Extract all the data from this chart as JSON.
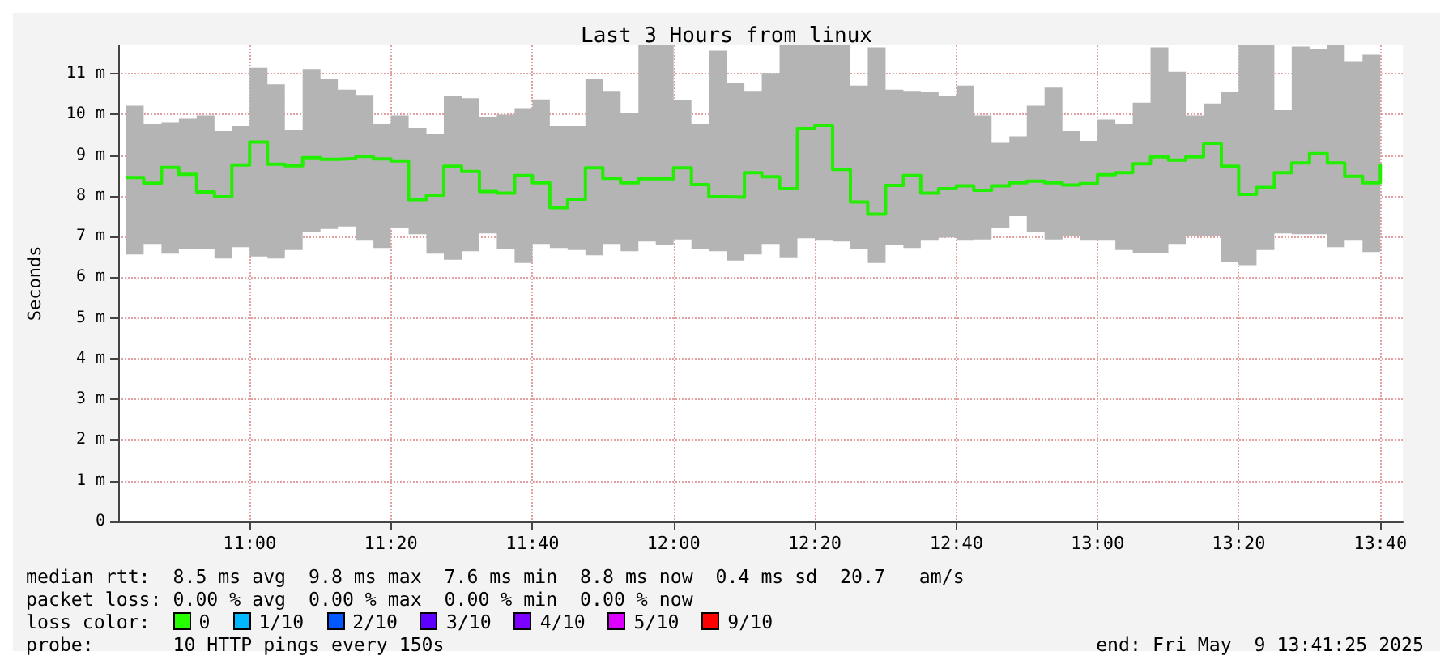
{
  "chart_data": {
    "type": "step",
    "title": "Last 3 Hours from linux",
    "ylabel": "Seconds",
    "x": [
      10.708,
      10.75,
      10.792,
      10.833,
      10.875,
      10.917,
      10.958,
      11.0,
      11.042,
      11.083,
      11.125,
      11.167,
      11.208,
      11.25,
      11.292,
      11.333,
      11.375,
      11.417,
      11.458,
      11.5,
      11.542,
      11.583,
      11.625,
      11.667,
      11.708,
      11.75,
      11.792,
      11.833,
      11.875,
      11.917,
      11.958,
      12.0,
      12.042,
      12.083,
      12.125,
      12.167,
      12.208,
      12.25,
      12.292,
      12.333,
      12.375,
      12.417,
      12.458,
      12.5,
      12.542,
      12.583,
      12.625,
      12.667,
      12.708,
      12.75,
      12.792,
      12.833,
      12.875,
      12.917,
      12.958,
      13.0,
      13.042,
      13.083,
      13.125,
      13.167,
      13.208,
      13.25,
      13.292,
      13.333,
      13.375,
      13.417,
      13.458,
      13.5,
      13.542,
      13.583,
      13.625,
      13.667
    ],
    "series": [
      {
        "color": "#22ee00",
        "values": [
          8.45,
          8.31,
          8.7,
          8.53,
          8.1,
          7.98,
          8.76,
          9.32,
          8.78,
          8.74,
          8.94,
          8.9,
          8.92,
          8.97,
          8.91,
          8.86,
          7.91,
          8.02,
          8.73,
          8.6,
          8.11,
          8.07,
          8.5,
          8.32,
          7.71,
          7.92,
          8.69,
          8.43,
          8.32,
          8.42,
          8.42,
          8.69,
          8.28,
          7.98,
          7.97,
          8.57,
          8.47,
          8.18,
          9.65,
          9.73,
          8.65,
          7.85,
          7.55,
          8.26,
          8.5,
          8.07,
          8.18,
          8.25,
          8.14,
          8.25,
          8.32,
          8.36,
          8.32,
          8.27,
          8.3,
          8.52,
          8.57,
          8.79,
          8.96,
          8.88,
          8.96,
          9.29,
          8.73,
          8.04,
          8.21,
          8.57,
          8.81,
          9.04,
          8.81,
          8.48,
          8.32,
          8.78
        ],
        "lower": [
          6.56,
          6.82,
          6.58,
          6.7,
          6.7,
          6.46,
          6.74,
          6.51,
          6.46,
          6.67,
          7.12,
          7.19,
          7.25,
          6.9,
          6.72,
          7.22,
          7.06,
          6.58,
          6.43,
          6.64,
          7.08,
          6.7,
          6.35,
          6.82,
          6.72,
          6.67,
          6.54,
          6.82,
          6.64,
          6.88,
          6.8,
          6.93,
          6.7,
          6.64,
          6.41,
          6.56,
          6.82,
          6.49,
          6.96,
          6.9,
          6.88,
          6.7,
          6.35,
          6.8,
          6.72,
          6.9,
          6.98,
          6.9,
          6.93,
          7.22,
          7.5,
          7.11,
          6.93,
          7.01,
          6.9,
          6.9,
          6.67,
          6.59,
          6.59,
          6.82,
          7.01,
          7.01,
          6.38,
          6.3,
          6.67,
          7.08,
          7.06,
          7.06,
          6.74,
          6.9,
          6.62,
          6.77
        ],
        "upper": [
          10.22,
          9.77,
          9.8,
          9.9,
          9.98,
          9.59,
          9.72,
          11.15,
          10.74,
          9.62,
          11.12,
          10.87,
          10.61,
          10.48,
          9.77,
          9.98,
          9.67,
          9.51,
          10.45,
          10.4,
          9.95,
          10.0,
          10.16,
          10.37,
          9.72,
          9.72,
          10.87,
          10.58,
          10.03,
          11.7,
          11.7,
          10.35,
          9.77,
          11.57,
          10.77,
          10.58,
          11.02,
          11.7,
          11.7,
          11.7,
          11.7,
          10.71,
          11.65,
          10.61,
          10.58,
          10.56,
          10.45,
          10.71,
          9.98,
          9.32,
          9.46,
          10.22,
          10.66,
          9.59,
          9.35,
          9.88,
          9.77,
          10.29,
          11.65,
          11.05,
          9.98,
          10.27,
          10.56,
          11.7,
          11.7,
          10.11,
          11.67,
          11.6,
          11.7,
          11.31,
          11.47,
          11.6
        ]
      }
    ],
    "xlim": [
      10.69,
      13.72
    ],
    "xticks": [
      {
        "value": 11.0,
        "label": "11:00"
      },
      {
        "value": 11.333,
        "label": "11:20"
      },
      {
        "value": 11.667,
        "label": "11:40"
      },
      {
        "value": 12.0,
        "label": "12:00"
      },
      {
        "value": 12.333,
        "label": "12:20"
      },
      {
        "value": 12.667,
        "label": "12:40"
      },
      {
        "value": 13.0,
        "label": "13:00"
      },
      {
        "value": 13.333,
        "label": "13:20"
      },
      {
        "value": 13.667,
        "label": "13:40"
      }
    ],
    "ylim": [
      0,
      11.7
    ],
    "yticks": [
      0,
      {
        "value": 1,
        "label": "1 m"
      },
      {
        "value": 2,
        "label": "2 m"
      },
      {
        "value": 3,
        "label": "3 m"
      },
      {
        "value": 4,
        "label": "4 m"
      },
      {
        "value": 5,
        "label": "5 m"
      },
      {
        "value": 6,
        "label": "6 m"
      },
      {
        "value": 7,
        "label": "7 m"
      },
      {
        "value": 8,
        "label": "8 m"
      },
      {
        "value": 9,
        "label": "9 m"
      },
      {
        "value": 10,
        "label": "10 m"
      },
      {
        "value": 11,
        "label": "11 m"
      }
    ],
    "grid": true,
    "annotations": [
      "median rtt:  8.5 ms avg  9.8 ms max  7.6 ms min  8.8 ms now  0.4 ms sd  20.7   am/s",
      "packet loss: 0.00 % avg  0.00 % max  0.00 % min  0.00 % now",
      "loss color:  0  1/10  2/10  3/10  4/10  5/10  9/10",
      "probe:       10 HTTP pings every 150s",
      "end: Fri May  9 13:41:25 2025"
    ]
  }
}
